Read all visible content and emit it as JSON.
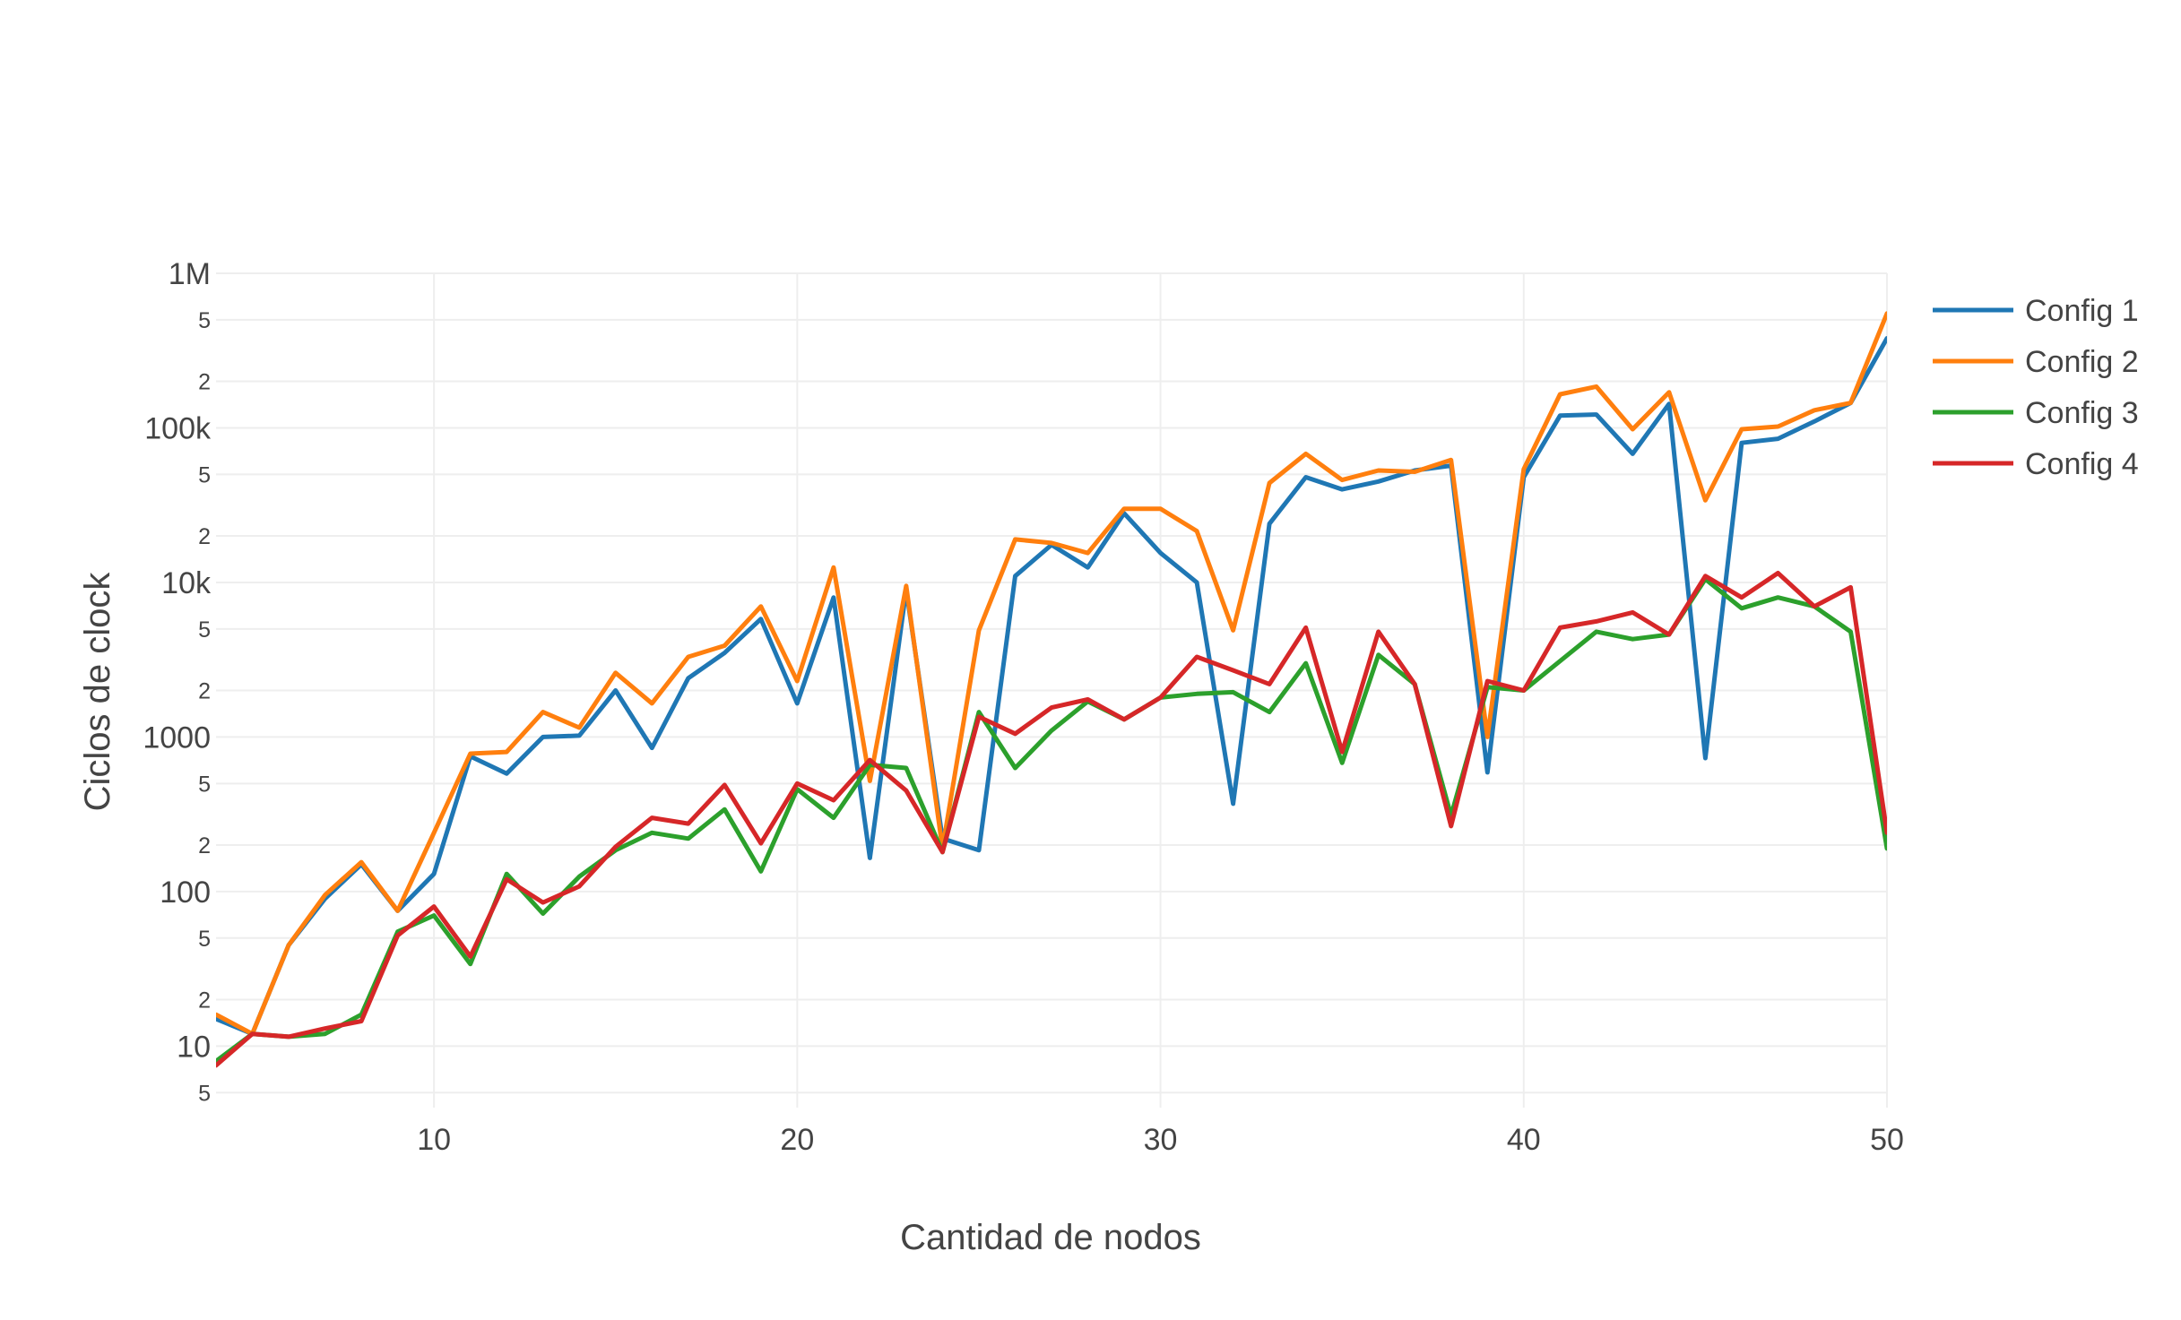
{
  "chart_data": {
    "type": "line",
    "title": "",
    "xlabel": "Cantidad de nodos",
    "ylabel": "Ciclos de clock",
    "x_axis": {
      "range": [
        4,
        50
      ],
      "tick_values": [
        10,
        20,
        30,
        40,
        50
      ],
      "tick_labels": [
        "10",
        "20",
        "30",
        "40",
        "50"
      ]
    },
    "y_axis": {
      "scale": "log",
      "range": [
        4,
        1000000
      ],
      "major_ticks": [
        {
          "value": 10,
          "label": "10"
        },
        {
          "value": 100,
          "label": "100"
        },
        {
          "value": 1000,
          "label": "1000"
        },
        {
          "value": 10000,
          "label": "10k"
        },
        {
          "value": 100000,
          "label": "100k"
        },
        {
          "value": 1000000,
          "label": "1M"
        }
      ],
      "minor_ticks": [
        {
          "value": 5,
          "label": "5"
        },
        {
          "value": 20,
          "label": "2"
        },
        {
          "value": 50,
          "label": "5"
        },
        {
          "value": 200,
          "label": "2"
        },
        {
          "value": 500,
          "label": "5"
        },
        {
          "value": 2000,
          "label": "2"
        },
        {
          "value": 5000,
          "label": "5"
        },
        {
          "value": 20000,
          "label": "2"
        },
        {
          "value": 50000,
          "label": "5"
        },
        {
          "value": 200000,
          "label": "2"
        },
        {
          "value": 500000,
          "label": "5"
        }
      ]
    },
    "grid": true,
    "legend_position": "top-right",
    "x": [
      4,
      5,
      6,
      7,
      8,
      9,
      10,
      11,
      12,
      13,
      14,
      15,
      16,
      17,
      18,
      19,
      20,
      21,
      22,
      23,
      24,
      25,
      26,
      27,
      28,
      29,
      30,
      31,
      32,
      33,
      34,
      35,
      36,
      37,
      38,
      39,
      40,
      41,
      42,
      43,
      44,
      45,
      46,
      47,
      48,
      49,
      50
    ],
    "series": [
      {
        "name": "Config 1",
        "color": "#1f77b4",
        "values": [
          15,
          12,
          45,
          90,
          150,
          75,
          130,
          750,
          580,
          1000,
          1020,
          2000,
          850,
          2400,
          3500,
          5800,
          1650,
          8000,
          165,
          9000,
          220,
          185,
          11000,
          17500,
          12500,
          28000,
          15500,
          10000,
          370,
          24000,
          48000,
          40000,
          45000,
          53000,
          57000,
          590,
          48000,
          120000,
          122000,
          68000,
          143000,
          730,
          80000,
          85000,
          110000,
          145000,
          380000
        ]
      },
      {
        "name": "Config 2",
        "color": "#ff7f0e",
        "values": [
          16,
          12,
          45,
          95,
          155,
          75,
          240,
          780,
          800,
          1450,
          1150,
          2600,
          1650,
          3300,
          3900,
          7000,
          2300,
          12500,
          520,
          9500,
          190,
          4900,
          19000,
          18000,
          15500,
          30000,
          30000,
          21500,
          4900,
          44000,
          68000,
          46000,
          53000,
          52000,
          62000,
          1000,
          54000,
          165000,
          185000,
          98000,
          170000,
          34000,
          98000,
          102000,
          130000,
          145000,
          550000
        ]
      },
      {
        "name": "Config 3",
        "color": "#2ca02c",
        "values": [
          8,
          12,
          11.5,
          12,
          16,
          55,
          70,
          34,
          130,
          72,
          125,
          185,
          240,
          220,
          340,
          135,
          460,
          300,
          660,
          630,
          180,
          1450,
          630,
          1100,
          1700,
          1300,
          1800,
          1900,
          1950,
          1450,
          3000,
          680,
          3400,
          2200,
          310,
          2100,
          2000,
          3100,
          4800,
          4300,
          4600,
          10500,
          6800,
          8000,
          7000,
          4800,
          190
        ]
      },
      {
        "name": "Config 4",
        "color": "#d62728",
        "values": [
          7.5,
          12,
          11.5,
          13,
          14.5,
          52,
          80,
          38,
          120,
          85,
          108,
          195,
          300,
          275,
          490,
          205,
          500,
          390,
          710,
          450,
          180,
          1350,
          1050,
          1550,
          1750,
          1300,
          1800,
          3300,
          2700,
          2200,
          5100,
          800,
          4800,
          2200,
          265,
          2300,
          2000,
          5100,
          5600,
          6400,
          4600,
          11000,
          8000,
          11500,
          7000,
          9300,
          240
        ]
      }
    ]
  }
}
